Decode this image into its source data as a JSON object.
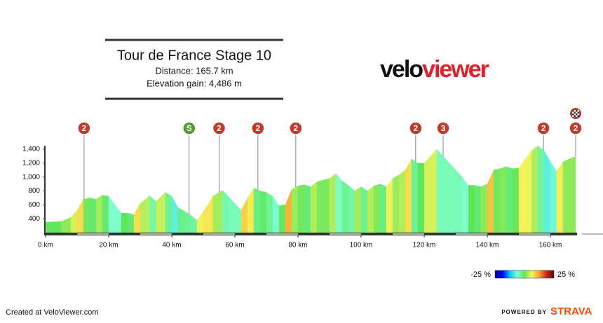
{
  "chart_data": {
    "type": "elevation-profile",
    "title": "Tour de France Stage 10",
    "subtitle_lines": [
      "Distance: 165.7 km",
      "Elevation gain: 4,486 m"
    ],
    "logo": [
      "velo",
      "viewer"
    ],
    "x": [
      0,
      5,
      8,
      10,
      12,
      14,
      16,
      18,
      20,
      22,
      24,
      26,
      28,
      30,
      33,
      35,
      38,
      40,
      42,
      44,
      46,
      48,
      50,
      53,
      56,
      58,
      60,
      62,
      64,
      66,
      68,
      70,
      72,
      74,
      76,
      78,
      80,
      82,
      84,
      86,
      90,
      92,
      94,
      96,
      98,
      100,
      102,
      104,
      106,
      108,
      110,
      112,
      114,
      116,
      118,
      120,
      122,
      124,
      126,
      128,
      130,
      132,
      134,
      136,
      138,
      140,
      142,
      144,
      146,
      148,
      150,
      152,
      154,
      156,
      158,
      160,
      162,
      164,
      168
    ],
    "series": [
      {
        "values": [
          350,
          360,
          420,
          520,
          680,
          700,
          680,
          740,
          720,
          600,
          480,
          480,
          460,
          620,
          730,
          650,
          780,
          720,
          560,
          510,
          450,
          380,
          500,
          720,
          810,
          720,
          620,
          520,
          700,
          840,
          800,
          780,
          720,
          590,
          600,
          820,
          870,
          890,
          860,
          930,
          980,
          1050,
          940,
          880,
          800,
          860,
          800,
          870,
          900,
          860,
          980,
          1030,
          1100,
          1260,
          1200,
          1200,
          1300,
          1400,
          1300,
          1200,
          1100,
          1000,
          880,
          880,
          860,
          900,
          1100,
          1120,
          1150,
          1120,
          1130,
          1260,
          1380,
          1450,
          1380,
          1220,
          1080,
          1220,
          1300
        ]
      }
    ],
    "xlim": [
      0,
      168
    ],
    "ylim": [
      200,
      1500
    ],
    "xticks": [
      {
        "value": 0,
        "label": "0 km"
      },
      {
        "value": 20,
        "label": "20 km"
      },
      {
        "value": 40,
        "label": "40 km"
      },
      {
        "value": 60,
        "label": "60 km"
      },
      {
        "value": 80,
        "label": "80 km"
      },
      {
        "value": 100,
        "label": "100 km"
      },
      {
        "value": 120,
        "label": "120 km"
      },
      {
        "value": 140,
        "label": "140 km"
      },
      {
        "value": 160,
        "label": "160 km"
      }
    ],
    "yticks": [
      400,
      600,
      800,
      {
        "value": 1000,
        "label": "1,000"
      },
      {
        "value": 1200,
        "label": "1,200"
      },
      {
        "value": 1400,
        "label": "1,400"
      }
    ],
    "climbs": [
      {
        "x": 12.2,
        "label": "2",
        "color": "#c0392b"
      },
      {
        "x": 45.5,
        "label": "S",
        "color": "#5a9a2c"
      },
      {
        "x": 55,
        "label": "2",
        "color": "#c0392b"
      },
      {
        "x": 67.3,
        "label": "2",
        "color": "#c0392b"
      },
      {
        "x": 79.3,
        "label": "2",
        "color": "#c0392b"
      },
      {
        "x": 117.3,
        "label": "2",
        "color": "#c0392b"
      },
      {
        "x": 126,
        "label": "3",
        "color": "#c0392b"
      },
      {
        "x": 157.8,
        "label": "2",
        "color": "#c0392b"
      },
      {
        "x": 168,
        "label": "2",
        "color": "#c0392b"
      }
    ],
    "gradient_legend": {
      "min": {
        "value": -25,
        "label": "-25 %"
      },
      "max": {
        "value": 25,
        "label": "25 %"
      },
      "colors": [
        "#000080",
        "#0000ff",
        "#00c8ff",
        "#80ffd0",
        "#5ce65c",
        "#f5f55a",
        "#f5a030",
        "#d02020",
        "#600000"
      ]
    },
    "footer": {
      "credit": "Created at VeloViewer.com",
      "powered": "POWERED BY",
      "brand": "STRAVA"
    }
  }
}
